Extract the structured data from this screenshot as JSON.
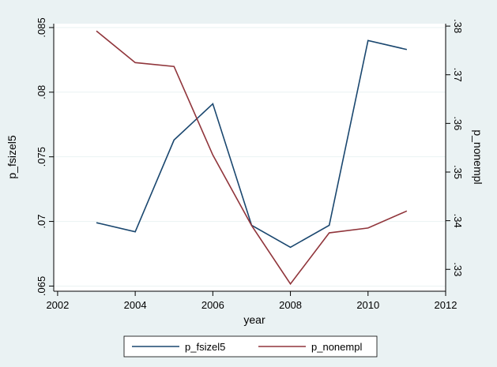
{
  "chart_data": {
    "type": "line",
    "xlabel": "year",
    "ylabel_left": "p_fsizel5",
    "ylabel_right": "p_nonempl",
    "xlim": [
      2001.9,
      2012
    ],
    "ylim_left": [
      0.0646,
      0.0853
    ],
    "ylim_right": [
      0.3255,
      0.3805
    ],
    "xticks": [
      2002,
      2004,
      2006,
      2008,
      2010,
      2012
    ],
    "xtick_labels": [
      "2002",
      "2004",
      "2006",
      "2008",
      "2010",
      "2012"
    ],
    "yticks_left": [
      0.065,
      0.07,
      0.075,
      0.08,
      0.085
    ],
    "ytick_labels_left": [
      ".065",
      ".07",
      ".075",
      ".08",
      ".085"
    ],
    "yticks_right": [
      0.33,
      0.34,
      0.35,
      0.36,
      0.37,
      0.38
    ],
    "ytick_labels_right": [
      ".33",
      ".34",
      ".35",
      ".36",
      ".37",
      ".38"
    ],
    "grid": true,
    "legend_position": "bottom",
    "x": [
      2003,
      2004,
      2005,
      2006,
      2007,
      2008,
      2009,
      2010,
      2011
    ],
    "series": [
      {
        "name": "p_fsizel5",
        "axis": "left",
        "color": "#1a476f",
        "values": [
          0.0699,
          0.0692,
          0.0763,
          0.0791,
          0.0697,
          0.068,
          0.0697,
          0.084,
          0.0833
        ]
      },
      {
        "name": "p_nonempl",
        "axis": "right",
        "color": "#90353b",
        "values": [
          0.379,
          0.3725,
          0.3717,
          0.3535,
          0.339,
          0.327,
          0.3375,
          0.3385,
          0.342
        ]
      }
    ]
  }
}
